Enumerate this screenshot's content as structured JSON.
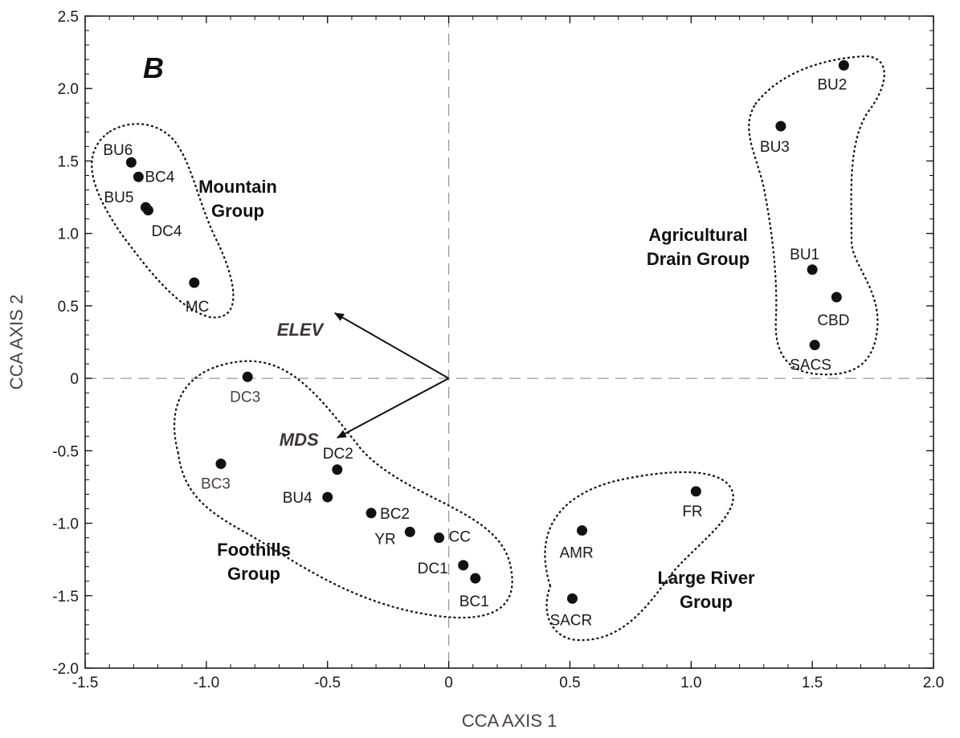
{
  "chart_data": {
    "type": "scatter",
    "panel_label": "B",
    "xlabel": "CCA AXIS 1",
    "ylabel": "CCA AXIS 2",
    "xlim": [
      -1.5,
      2.0
    ],
    "ylim": [
      -2.0,
      2.5
    ],
    "x_ticks": [
      -1.5,
      -1.0,
      -0.5,
      0,
      0.5,
      1.0,
      1.5,
      2.0
    ],
    "x_tick_labels": [
      "-1.5",
      "-1.0",
      "-0.5",
      "0",
      "0.5",
      "1.0",
      "1.5",
      "2.0"
    ],
    "y_ticks": [
      2.5,
      2.0,
      1.5,
      1.0,
      0.5,
      0,
      -0.5,
      -1.0,
      -1.5,
      -2.0
    ],
    "y_tick_labels": [
      "2.5",
      "2.0",
      "1.5",
      "1.0",
      "0.5",
      "0",
      "-0.5",
      "-1.0",
      "-1.5",
      "-2.0"
    ],
    "grid": false,
    "reference_lines": "dashed lines at x = 0 and y = 0",
    "points": [
      {
        "label": "BU6",
        "x": -1.31,
        "y": 1.49
      },
      {
        "label": "BC4",
        "x": -1.28,
        "y": 1.39
      },
      {
        "label": "BU5",
        "x": -1.25,
        "y": 1.18
      },
      {
        "label": "DC4",
        "x": -1.24,
        "y": 1.16
      },
      {
        "label": "MC",
        "x": -1.05,
        "y": 0.66
      },
      {
        "label": "DC3",
        "x": -0.83,
        "y": 0.01
      },
      {
        "label": "BC3",
        "x": -0.94,
        "y": -0.59
      },
      {
        "label": "DC2",
        "x": -0.46,
        "y": -0.63
      },
      {
        "label": "BU4",
        "x": -0.5,
        "y": -0.82
      },
      {
        "label": "BC2",
        "x": -0.32,
        "y": -0.93
      },
      {
        "label": "YR",
        "x": -0.16,
        "y": -1.06
      },
      {
        "label": "CC",
        "x": -0.04,
        "y": -1.1
      },
      {
        "label": "DC1",
        "x": 0.06,
        "y": -1.29
      },
      {
        "label": "BC1",
        "x": 0.11,
        "y": -1.38
      },
      {
        "label": "AMR",
        "x": 0.55,
        "y": -1.05
      },
      {
        "label": "SACR",
        "x": 0.51,
        "y": -1.52
      },
      {
        "label": "FR",
        "x": 1.02,
        "y": -0.78
      },
      {
        "label": "BU2",
        "x": 1.63,
        "y": 2.16
      },
      {
        "label": "BU3",
        "x": 1.37,
        "y": 1.74
      },
      {
        "label": "BU1",
        "x": 1.5,
        "y": 0.75
      },
      {
        "label": "CBD",
        "x": 1.6,
        "y": 0.56
      },
      {
        "label": "SACS",
        "x": 1.51,
        "y": 0.23
      }
    ],
    "vectors": [
      {
        "label": "ELEV",
        "x": -0.47,
        "y": 0.45
      },
      {
        "label": "MDS",
        "x": -0.46,
        "y": -0.41
      }
    ],
    "groups": [
      {
        "name_lines": [
          "Mountain",
          "Group"
        ]
      },
      {
        "name_lines": [
          "Foothills",
          "Group"
        ]
      },
      {
        "name_lines": [
          "Large River",
          "Group"
        ]
      },
      {
        "name_lines": [
          "Agricultural",
          "Drain Group"
        ]
      }
    ]
  }
}
